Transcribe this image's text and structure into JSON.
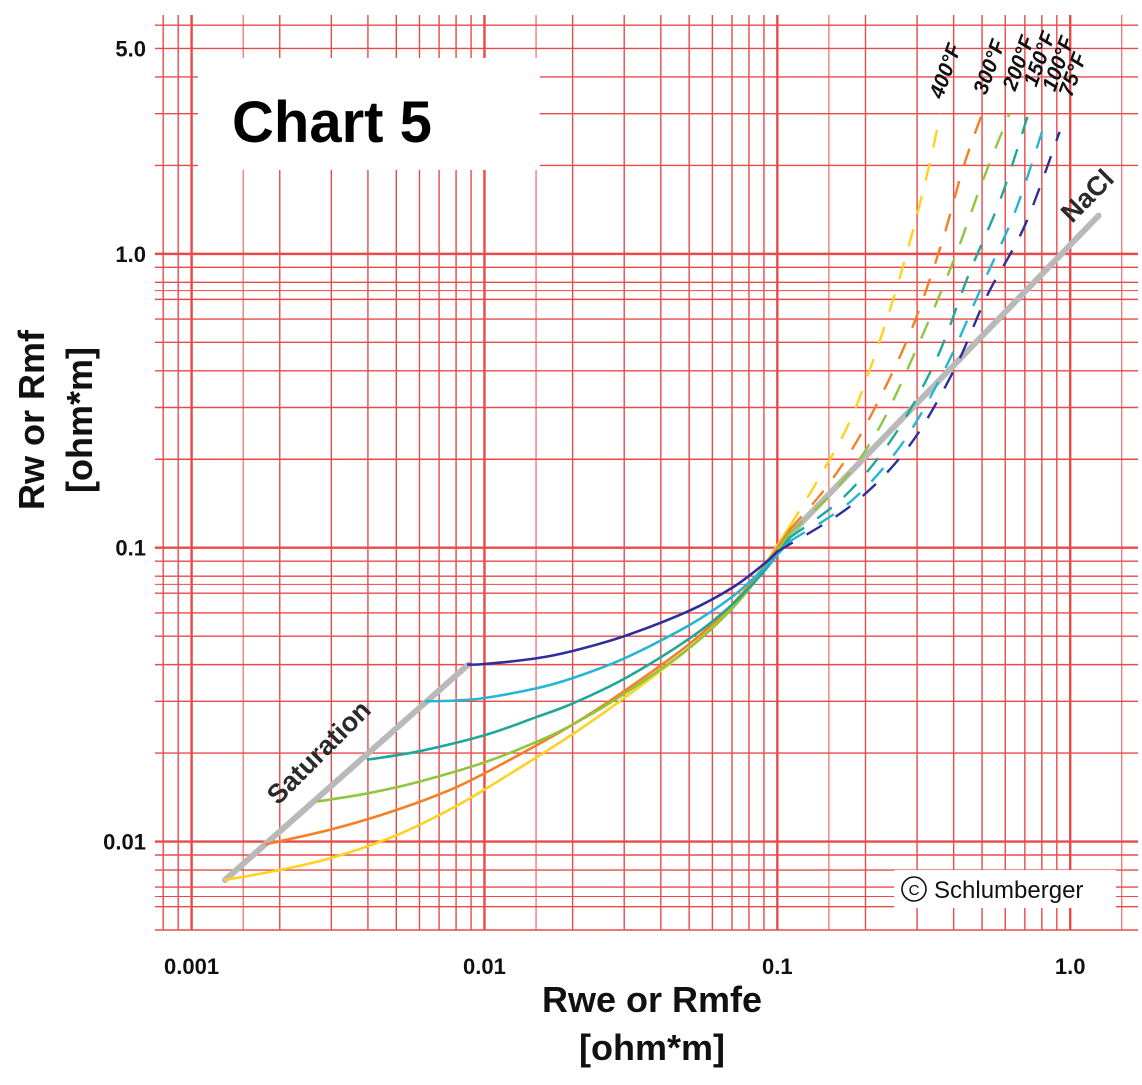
{
  "chart_data": {
    "type": "line",
    "title": "Chart 5",
    "xlabel": [
      "Rwe or Rmfe",
      "[ohm*m]"
    ],
    "ylabel": [
      "Rw or Rmf",
      "[ohm*m]"
    ],
    "x_scale": "log",
    "y_scale": "log",
    "xlim": [
      0.00075,
      1.6
    ],
    "ylim": [
      0.005,
      6.5
    ],
    "x_ticks": [
      {
        "value": 0.001,
        "label": "0.001"
      },
      {
        "value": 0.01,
        "label": "0.01"
      },
      {
        "value": 0.1,
        "label": "0.1"
      },
      {
        "value": 1.0,
        "label": "1.0"
      }
    ],
    "y_ticks": [
      {
        "value": 0.01,
        "label": "0.01"
      },
      {
        "value": 0.1,
        "label": "0.1"
      },
      {
        "value": 1.0,
        "label": "1.0"
      },
      {
        "value": 5.0,
        "label": "5.0"
      }
    ],
    "grid": true,
    "grid_color": "#e84a4a",
    "series": [
      {
        "name": "400°F",
        "color": "#ffd21f",
        "solid": [
          [
            0.0013,
            0.0074
          ],
          [
            0.002,
            0.008
          ],
          [
            0.003,
            0.0088
          ],
          [
            0.005,
            0.0105
          ],
          [
            0.008,
            0.0132
          ],
          [
            0.012,
            0.0168
          ],
          [
            0.02,
            0.0232
          ],
          [
            0.03,
            0.0308
          ],
          [
            0.05,
            0.0455
          ],
          [
            0.07,
            0.064
          ],
          [
            0.09,
            0.087
          ],
          [
            0.11,
            0.118
          ]
        ],
        "dashed": [
          [
            0.11,
            0.118
          ],
          [
            0.14,
            0.175
          ],
          [
            0.18,
            0.28
          ],
          [
            0.23,
            0.55
          ],
          [
            0.28,
            1.05
          ],
          [
            0.33,
            2.0
          ],
          [
            0.36,
            3.0
          ]
        ]
      },
      {
        "name": "300°F",
        "color": "#f47f26",
        "solid": [
          [
            0.0018,
            0.0098
          ],
          [
            0.003,
            0.011
          ],
          [
            0.005,
            0.0128
          ],
          [
            0.008,
            0.0153
          ],
          [
            0.012,
            0.0188
          ],
          [
            0.02,
            0.025
          ],
          [
            0.03,
            0.0325
          ],
          [
            0.05,
            0.047
          ],
          [
            0.07,
            0.064
          ],
          [
            0.09,
            0.086
          ],
          [
            0.11,
            0.115
          ]
        ],
        "dashed": [
          [
            0.11,
            0.115
          ],
          [
            0.15,
            0.165
          ],
          [
            0.2,
            0.26
          ],
          [
            0.28,
            0.52
          ],
          [
            0.36,
            1.05
          ],
          [
            0.43,
            1.95
          ],
          [
            0.5,
            3.0
          ]
        ]
      },
      {
        "name": "200°F",
        "color": "#8fc63f",
        "solid": [
          [
            0.0027,
            0.0137
          ],
          [
            0.004,
            0.0146
          ],
          [
            0.006,
            0.016
          ],
          [
            0.01,
            0.0186
          ],
          [
            0.015,
            0.0218
          ],
          [
            0.02,
            0.025
          ],
          [
            0.03,
            0.0318
          ],
          [
            0.05,
            0.0455
          ],
          [
            0.07,
            0.062
          ],
          [
            0.09,
            0.084
          ],
          [
            0.11,
            0.112
          ]
        ],
        "dashed": [
          [
            0.11,
            0.112
          ],
          [
            0.16,
            0.16
          ],
          [
            0.22,
            0.25
          ],
          [
            0.3,
            0.48
          ],
          [
            0.4,
            0.95
          ],
          [
            0.5,
            1.75
          ],
          [
            0.62,
            3.0
          ]
        ]
      },
      {
        "name": "150°F",
        "color": "#1fa89a",
        "solid": [
          [
            0.004,
            0.019
          ],
          [
            0.006,
            0.0203
          ],
          [
            0.01,
            0.023
          ],
          [
            0.015,
            0.0265
          ],
          [
            0.02,
            0.0295
          ],
          [
            0.03,
            0.0358
          ],
          [
            0.05,
            0.049
          ],
          [
            0.07,
            0.064
          ],
          [
            0.09,
            0.083
          ],
          [
            0.11,
            0.108
          ]
        ],
        "dashed": [
          [
            0.11,
            0.108
          ],
          [
            0.17,
            0.15
          ],
          [
            0.25,
            0.24
          ],
          [
            0.35,
            0.44
          ],
          [
            0.45,
            0.85
          ],
          [
            0.58,
            1.55
          ],
          [
            0.72,
            3.0
          ]
        ]
      },
      {
        "name": "100°F",
        "color": "#25b6d4",
        "solid": [
          [
            0.0063,
            0.03
          ],
          [
            0.008,
            0.0302
          ],
          [
            0.01,
            0.0308
          ],
          [
            0.015,
            0.0332
          ],
          [
            0.02,
            0.036
          ],
          [
            0.03,
            0.042
          ],
          [
            0.05,
            0.0545
          ],
          [
            0.07,
            0.068
          ],
          [
            0.09,
            0.085
          ],
          [
            0.11,
            0.105
          ]
        ],
        "dashed": [
          [
            0.11,
            0.105
          ],
          [
            0.18,
            0.145
          ],
          [
            0.27,
            0.23
          ],
          [
            0.38,
            0.42
          ],
          [
            0.5,
            0.78
          ],
          [
            0.65,
            1.4
          ],
          [
            0.82,
            2.8
          ]
        ]
      },
      {
        "name": "75°F",
        "color": "#2c2f9a",
        "solid": [
          [
            0.0088,
            0.04
          ],
          [
            0.01,
            0.0402
          ],
          [
            0.015,
            0.042
          ],
          [
            0.02,
            0.0445
          ],
          [
            0.03,
            0.05
          ],
          [
            0.05,
            0.061
          ],
          [
            0.07,
            0.073
          ],
          [
            0.09,
            0.088
          ],
          [
            0.1,
            0.097
          ]
        ],
        "dashed": [
          [
            0.1,
            0.097
          ],
          [
            0.18,
            0.14
          ],
          [
            0.28,
            0.22
          ],
          [
            0.4,
            0.4
          ],
          [
            0.52,
            0.72
          ],
          [
            0.7,
            1.25
          ],
          [
            0.92,
            2.6
          ]
        ]
      }
    ],
    "reference_lines": [
      {
        "name": "NaCl",
        "color": "#b9b9b9",
        "points": [
          [
            0.1,
            0.1
          ],
          [
            1.25,
            1.35
          ]
        ]
      },
      {
        "name": "Saturation",
        "color": "#b9b9b9",
        "points": [
          [
            0.0013,
            0.0074
          ],
          [
            0.0088,
            0.04
          ]
        ]
      }
    ],
    "annotations": {
      "saturation": "Saturation",
      "nacl": "NaCl",
      "credit": "Schlumberger",
      "credit_symbol": "C"
    }
  }
}
